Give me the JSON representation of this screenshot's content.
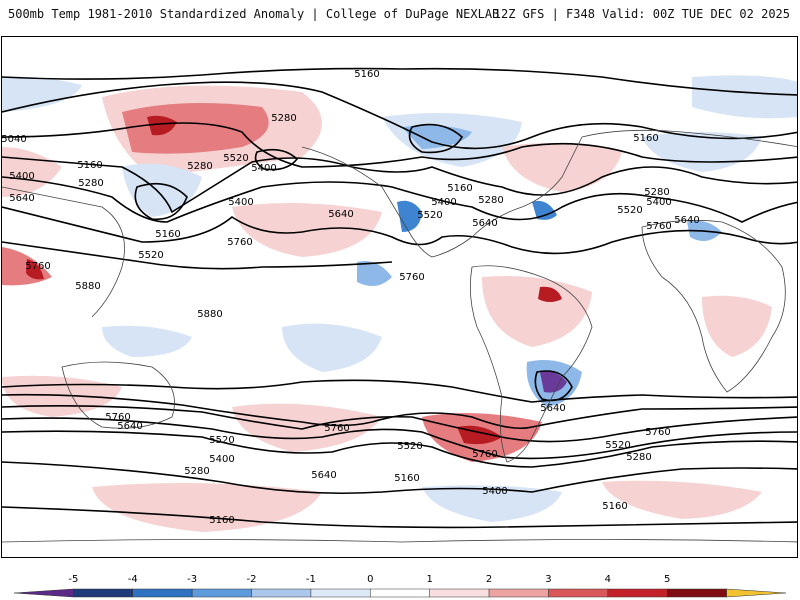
{
  "header": {
    "title": "500mb Temp 1981-2010 Standardized Anomaly | College of DuPage NEXLAB",
    "run_info": "12Z GFS | F348 Valid: 00Z TUE DEC 02 2025"
  },
  "contour_labels": [
    "5160",
    "5280",
    "5400",
    "5520",
    "5640",
    "5760",
    "5880"
  ],
  "colorbar": {
    "ticks": [
      "-5",
      "-4",
      "-3",
      "-2",
      "-1",
      "0",
      "1",
      "2",
      "3",
      "4",
      "5"
    ],
    "colors": [
      "#5b2a86",
      "#1f3a78",
      "#2f72c2",
      "#5d9bdd",
      "#a9c8ec",
      "#dde9f7",
      "#ffffff",
      "#f8dede",
      "#eea3a3",
      "#d9585a",
      "#c4222a",
      "#7f0d12",
      "#f2c230"
    ]
  },
  "anomaly_colors": {
    "strong_pos": "#b71c22",
    "pos": "#e57c7f",
    "weak_pos": "#f6d2d2",
    "weak_neg": "#d6e4f5",
    "neg": "#8db8e8",
    "strong_neg": "#3f84d1",
    "extreme_neg": "#6a3a9a"
  }
}
